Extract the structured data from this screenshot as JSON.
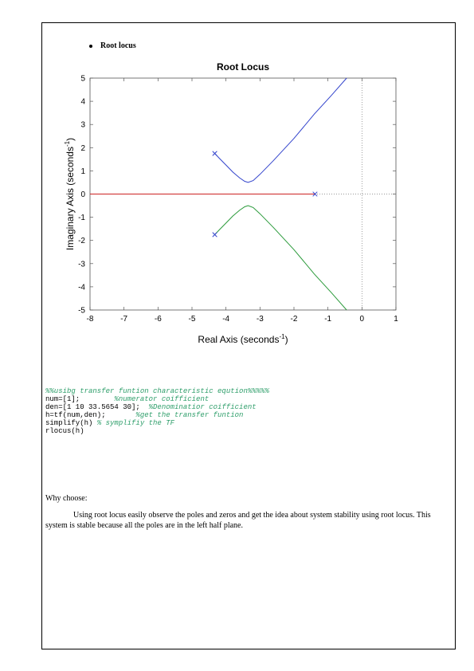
{
  "document": {
    "section_bullet": "Root locus",
    "code_lines": [
      {
        "parts": [
          {
            "t": "%%usibg transfer funtion characteristic eqution%%%%%",
            "k": "c"
          }
        ]
      },
      {
        "parts": [
          {
            "t": "num=[1];        ",
            "k": ""
          },
          {
            "t": "%numerator coifficient",
            "k": "c"
          }
        ]
      },
      {
        "parts": [
          {
            "t": "den=[1 10 33.5654 30];  ",
            "k": ""
          },
          {
            "t": "%Denominatior coifficient",
            "k": "c"
          }
        ]
      },
      {
        "parts": [
          {
            "t": "h=tf(num,den);       ",
            "k": ""
          },
          {
            "t": "%get the transfer funtion",
            "k": "c"
          }
        ]
      },
      {
        "parts": [
          {
            "t": "simplify(h) ",
            "k": ""
          },
          {
            "t": "% symplifiy the TF",
            "k": "c"
          }
        ]
      },
      {
        "parts": [
          {
            "t": "rlocus(h)",
            "k": ""
          }
        ]
      }
    ],
    "why_title": "Why choose:",
    "why_body": "Using root locus easily observe the poles and zeros and get the idea about system stability using root locus. This system is stable because all the poles are in the left half plane."
  },
  "chart_data": {
    "type": "line",
    "title": "Root Locus",
    "xlabel_main": "Real Axis (seconds",
    "xlabel_sup": "-1",
    "xlabel_end": ")",
    "ylabel_main": "Imaginary Axis (seconds",
    "ylabel_sup": "-1",
    "ylabel_end": ")",
    "xlim": [
      -8,
      1
    ],
    "ylim": [
      -5,
      5
    ],
    "xticks": [
      -8,
      -7,
      -6,
      -5,
      -4,
      -3,
      -2,
      -1,
      0,
      1
    ],
    "yticks": [
      -5,
      -4,
      -3,
      -2,
      -1,
      0,
      1,
      2,
      3,
      4,
      5
    ],
    "poles": [
      {
        "x": -4.33,
        "y": 1.75
      },
      {
        "x": -4.33,
        "y": -1.75
      },
      {
        "x": -1.38,
        "y": 0
      }
    ],
    "series": [
      {
        "color": "#3344cc",
        "x": [
          -4.33,
          -4.2,
          -4.0,
          -3.8,
          -3.6,
          -3.45,
          -3.35,
          -3.2,
          -3.0,
          -2.6,
          -2.0,
          -1.4,
          -0.9,
          -0.45
        ],
        "y": [
          1.75,
          1.55,
          1.25,
          0.95,
          0.7,
          0.55,
          0.5,
          0.58,
          0.85,
          1.45,
          2.4,
          3.45,
          4.25,
          5.0
        ]
      },
      {
        "color": "#2a9a3a",
        "x": [
          -4.33,
          -4.2,
          -4.0,
          -3.8,
          -3.6,
          -3.45,
          -3.35,
          -3.2,
          -3.0,
          -2.6,
          -2.0,
          -1.4,
          -0.9,
          -0.45
        ],
        "y": [
          -1.75,
          -1.55,
          -1.25,
          -0.95,
          -0.7,
          -0.55,
          -0.5,
          -0.58,
          -0.85,
          -1.45,
          -2.4,
          -3.45,
          -4.25,
          -5.0
        ]
      },
      {
        "color": "#cc2222",
        "x": [
          -8,
          -1.38
        ],
        "y": [
          0,
          0
        ]
      }
    ],
    "grid": false,
    "reference_lines": {
      "x0": true,
      "y0": true
    }
  }
}
